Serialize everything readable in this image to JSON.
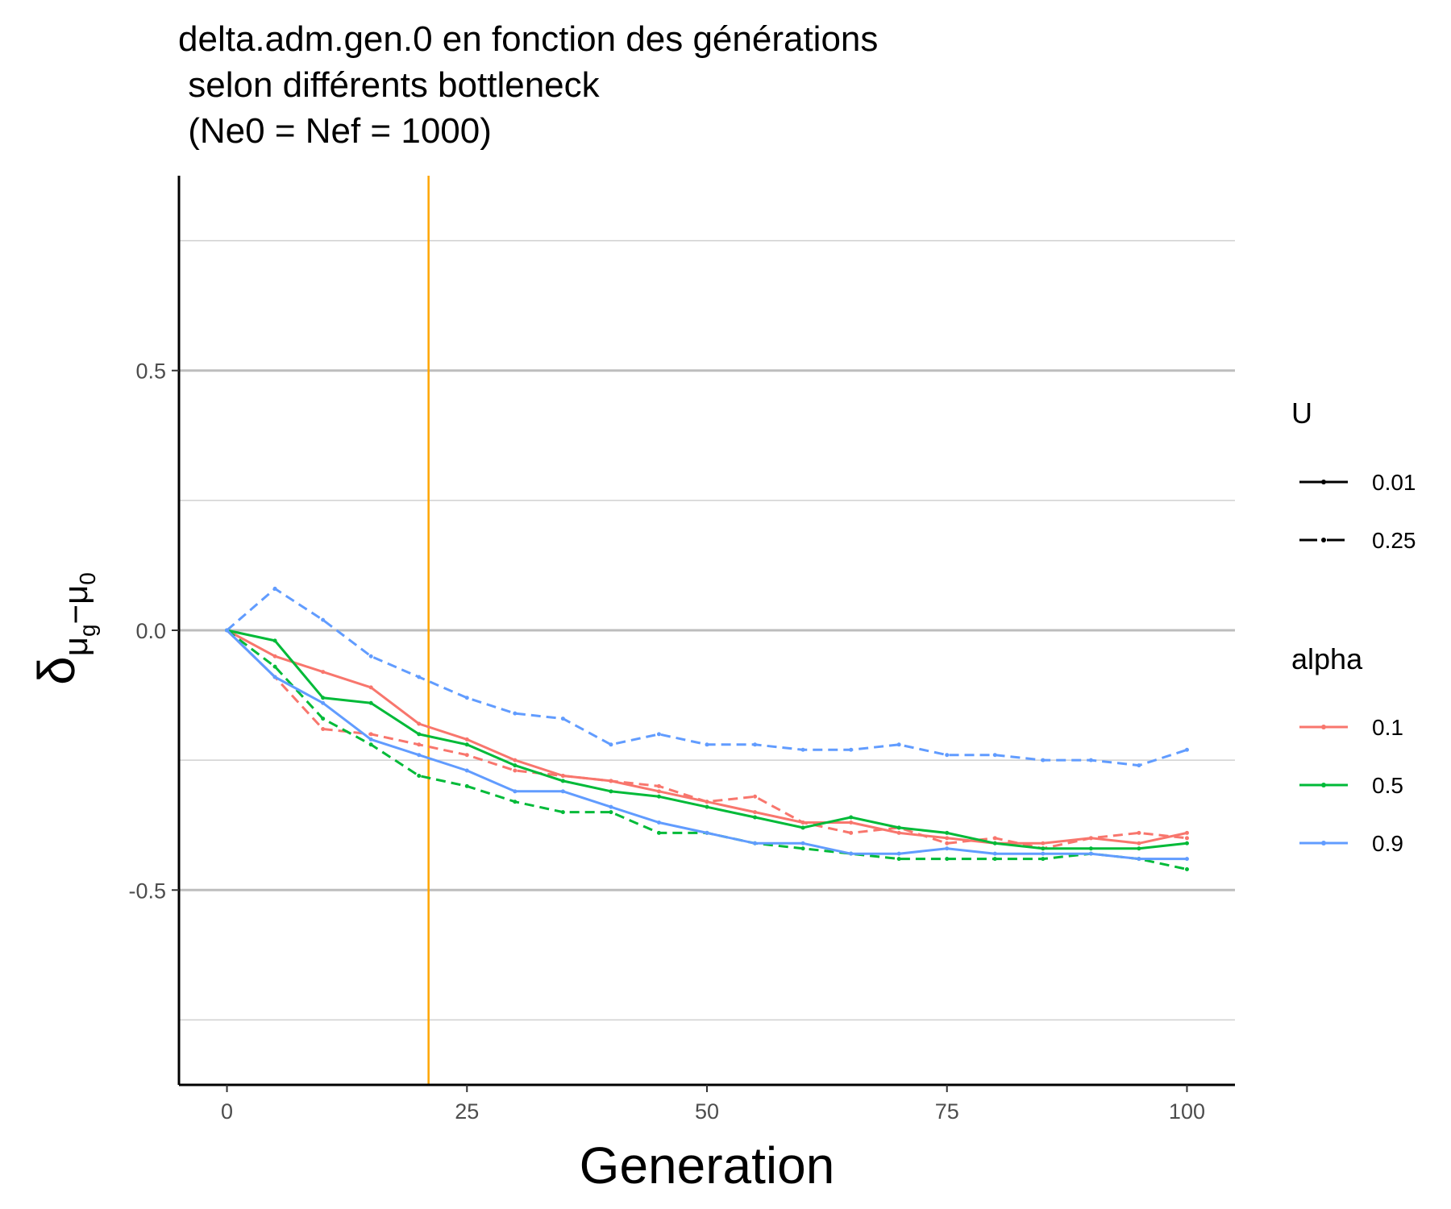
{
  "chart_data": {
    "type": "line",
    "title_lines": [
      "delta.adm.gen.0 en fonction des générations",
      " selon différents bottleneck",
      " (Ne0 = Nef = 1000)"
    ],
    "xlabel": "Generation",
    "ylabel_main": "δ",
    "ylabel_sub_a": "μ",
    "ylabel_sub_a_sub": "g",
    "ylabel_sub_minus": "−",
    "ylabel_sub_b": "μ",
    "ylabel_sub_b_sub": "0",
    "xlim": [
      -5,
      105
    ],
    "ylim": [
      -0.875,
      0.875
    ],
    "x_ticks": [
      0,
      25,
      50,
      75,
      100
    ],
    "x_tick_labels": [
      "0",
      "25",
      "50",
      "75",
      "100"
    ],
    "y_ticks": [
      -0.5,
      0.0,
      0.5
    ],
    "y_tick_labels": [
      "-0.5",
      "0.0",
      "0.5"
    ],
    "y_minor_grid": [
      -0.75,
      -0.25,
      0.25,
      0.75
    ],
    "grid": "horizontal",
    "vline": {
      "x": 21,
      "color": "#FFA500"
    },
    "legend_placement": "right",
    "legend": {
      "linetype_title": "U",
      "linetype_entries": [
        {
          "label": "0.01",
          "dash": "solid"
        },
        {
          "label": "0.25",
          "dash": "dashed"
        }
      ],
      "color_title": "alpha",
      "color_entries": [
        {
          "label": "0.1",
          "color": "#F8766D"
        },
        {
          "label": "0.5",
          "color": "#00BA38"
        },
        {
          "label": "0.9",
          "color": "#619CFF"
        }
      ]
    },
    "series": [
      {
        "alpha": "0.1",
        "U": "0.01",
        "color": "#F8766D",
        "dash": "solid",
        "x": [
          0,
          5,
          10,
          15,
          20,
          25,
          30,
          35,
          40,
          45,
          50,
          55,
          60,
          65,
          70,
          75,
          80,
          85,
          90,
          95,
          100
        ],
        "y": [
          0.0,
          -0.05,
          -0.08,
          -0.11,
          -0.18,
          -0.21,
          -0.25,
          -0.28,
          -0.29,
          -0.31,
          -0.33,
          -0.35,
          -0.37,
          -0.37,
          -0.39,
          -0.4,
          -0.41,
          -0.41,
          -0.4,
          -0.41,
          -0.39
        ]
      },
      {
        "alpha": "0.1",
        "U": "0.25",
        "color": "#F8766D",
        "dash": "dashed",
        "x": [
          0,
          5,
          10,
          15,
          20,
          25,
          30,
          35,
          40,
          45,
          50,
          55,
          60,
          65,
          70,
          75,
          80,
          85,
          90,
          95,
          100
        ],
        "y": [
          0.0,
          -0.09,
          -0.19,
          -0.2,
          -0.22,
          -0.24,
          -0.27,
          -0.28,
          -0.29,
          -0.3,
          -0.33,
          -0.32,
          -0.37,
          -0.39,
          -0.38,
          -0.41,
          -0.4,
          -0.42,
          -0.4,
          -0.39,
          -0.4
        ]
      },
      {
        "alpha": "0.5",
        "U": "0.01",
        "color": "#00BA38",
        "dash": "solid",
        "x": [
          0,
          5,
          10,
          15,
          20,
          25,
          30,
          35,
          40,
          45,
          50,
          55,
          60,
          65,
          70,
          75,
          80,
          85,
          90,
          95,
          100
        ],
        "y": [
          0.0,
          -0.02,
          -0.13,
          -0.14,
          -0.2,
          -0.22,
          -0.26,
          -0.29,
          -0.31,
          -0.32,
          -0.34,
          -0.36,
          -0.38,
          -0.36,
          -0.38,
          -0.39,
          -0.41,
          -0.42,
          -0.42,
          -0.42,
          -0.41
        ]
      },
      {
        "alpha": "0.5",
        "U": "0.25",
        "color": "#00BA38",
        "dash": "dashed",
        "x": [
          0,
          5,
          10,
          15,
          20,
          25,
          30,
          35,
          40,
          45,
          50,
          55,
          60,
          65,
          70,
          75,
          80,
          85,
          90,
          95,
          100
        ],
        "y": [
          0.0,
          -0.07,
          -0.17,
          -0.22,
          -0.28,
          -0.3,
          -0.33,
          -0.35,
          -0.35,
          -0.39,
          -0.39,
          -0.41,
          -0.42,
          -0.43,
          -0.44,
          -0.44,
          -0.44,
          -0.44,
          -0.43,
          -0.44,
          -0.46
        ]
      },
      {
        "alpha": "0.9",
        "U": "0.01",
        "color": "#619CFF",
        "dash": "solid",
        "x": [
          0,
          5,
          10,
          15,
          20,
          25,
          30,
          35,
          40,
          45,
          50,
          55,
          60,
          65,
          70,
          75,
          80,
          85,
          90,
          95,
          100
        ],
        "y": [
          0.0,
          -0.09,
          -0.14,
          -0.21,
          -0.24,
          -0.27,
          -0.31,
          -0.31,
          -0.34,
          -0.37,
          -0.39,
          -0.41,
          -0.41,
          -0.43,
          -0.43,
          -0.42,
          -0.43,
          -0.43,
          -0.43,
          -0.44,
          -0.44
        ]
      },
      {
        "alpha": "0.9",
        "U": "0.25",
        "color": "#619CFF",
        "dash": "dashed",
        "x": [
          0,
          5,
          10,
          15,
          20,
          25,
          30,
          35,
          40,
          45,
          50,
          55,
          60,
          65,
          70,
          75,
          80,
          85,
          90,
          95,
          100
        ],
        "y": [
          0.0,
          0.08,
          0.02,
          -0.05,
          -0.09,
          -0.13,
          -0.16,
          -0.17,
          -0.22,
          -0.2,
          -0.22,
          -0.22,
          -0.23,
          -0.23,
          -0.22,
          -0.24,
          -0.24,
          -0.25,
          -0.25,
          -0.26,
          -0.23
        ]
      }
    ]
  }
}
